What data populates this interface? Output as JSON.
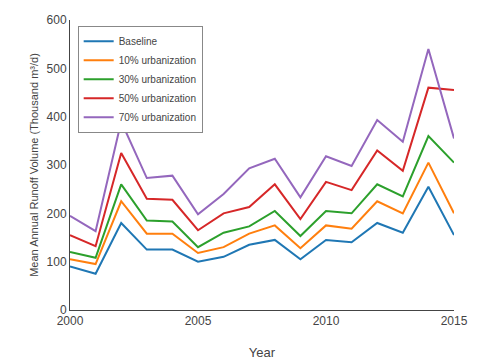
{
  "chart_data": {
    "type": "line",
    "x": [
      2000,
      2001,
      2002,
      2003,
      2004,
      2005,
      2006,
      2007,
      2008,
      2009,
      2010,
      2011,
      2012,
      2013,
      2014,
      2015
    ],
    "series": [
      {
        "name": "Baseline",
        "values": [
          90,
          75,
          180,
          125,
          125,
          100,
          110,
          135,
          145,
          105,
          145,
          140,
          180,
          160,
          255,
          155
        ]
      },
      {
        "name": "10% urbanization",
        "values": [
          105,
          95,
          225,
          158,
          158,
          118,
          130,
          158,
          175,
          128,
          175,
          168,
          225,
          200,
          305,
          200
        ]
      },
      {
        "name": "30% urbanization",
        "values": [
          120,
          108,
          260,
          185,
          183,
          130,
          160,
          173,
          205,
          153,
          205,
          200,
          260,
          235,
          360,
          305
        ]
      },
      {
        "name": "50% urbanization",
        "values": [
          155,
          132,
          325,
          230,
          228,
          165,
          200,
          213,
          260,
          188,
          265,
          248,
          330,
          288,
          460,
          455
        ]
      },
      {
        "name": "70% urbanization",
        "values": [
          195,
          163,
          390,
          273,
          278,
          198,
          240,
          293,
          313,
          233,
          318,
          298,
          393,
          348,
          540,
          355
        ]
      }
    ],
    "xlabel": "Year",
    "ylabel": "Mean Annual Runoff Volume (Thousand m³/d)",
    "xlim": [
      2000,
      2015
    ],
    "ylim": [
      0,
      600
    ],
    "xticks": [
      2000,
      2005,
      2010,
      2015
    ],
    "yticks": [
      0,
      100,
      200,
      300,
      400,
      500,
      600
    ],
    "grid": false,
    "legend": "upper left"
  }
}
